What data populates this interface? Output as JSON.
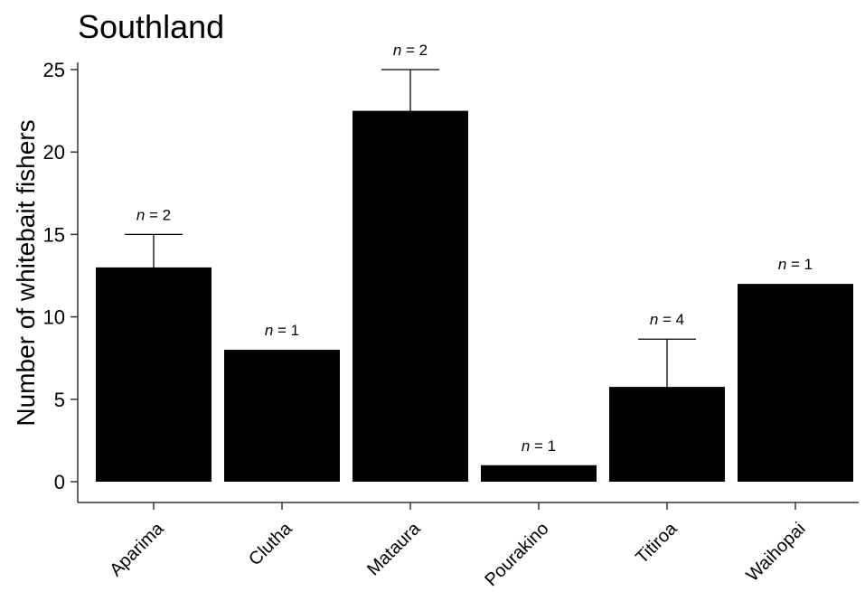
{
  "chart_data": {
    "type": "bar",
    "title": "Southland",
    "xlabel": "",
    "ylabel": "Number of whitebait fishers",
    "categories": [
      "Aparima",
      "Clutha",
      "Mataura",
      "Pourakino",
      "Titiroa",
      "Waihopai"
    ],
    "values": [
      13,
      8,
      22.5,
      1,
      5.75,
      12
    ],
    "error_upper": [
      15,
      null,
      25,
      null,
      8.65,
      null
    ],
    "sample_labels": [
      "= 2",
      "= 1",
      "= 2",
      "= 1",
      "= 4",
      "= 1"
    ],
    "sample_prefix": "n",
    "ylim": [
      0,
      25
    ],
    "yticks": [
      0,
      5,
      10,
      15,
      20,
      25
    ],
    "grid": false,
    "legend": "none",
    "colors": {
      "bar": "#000000",
      "error_bar": "#000000",
      "axis": "#333333",
      "text": "#000000"
    }
  }
}
